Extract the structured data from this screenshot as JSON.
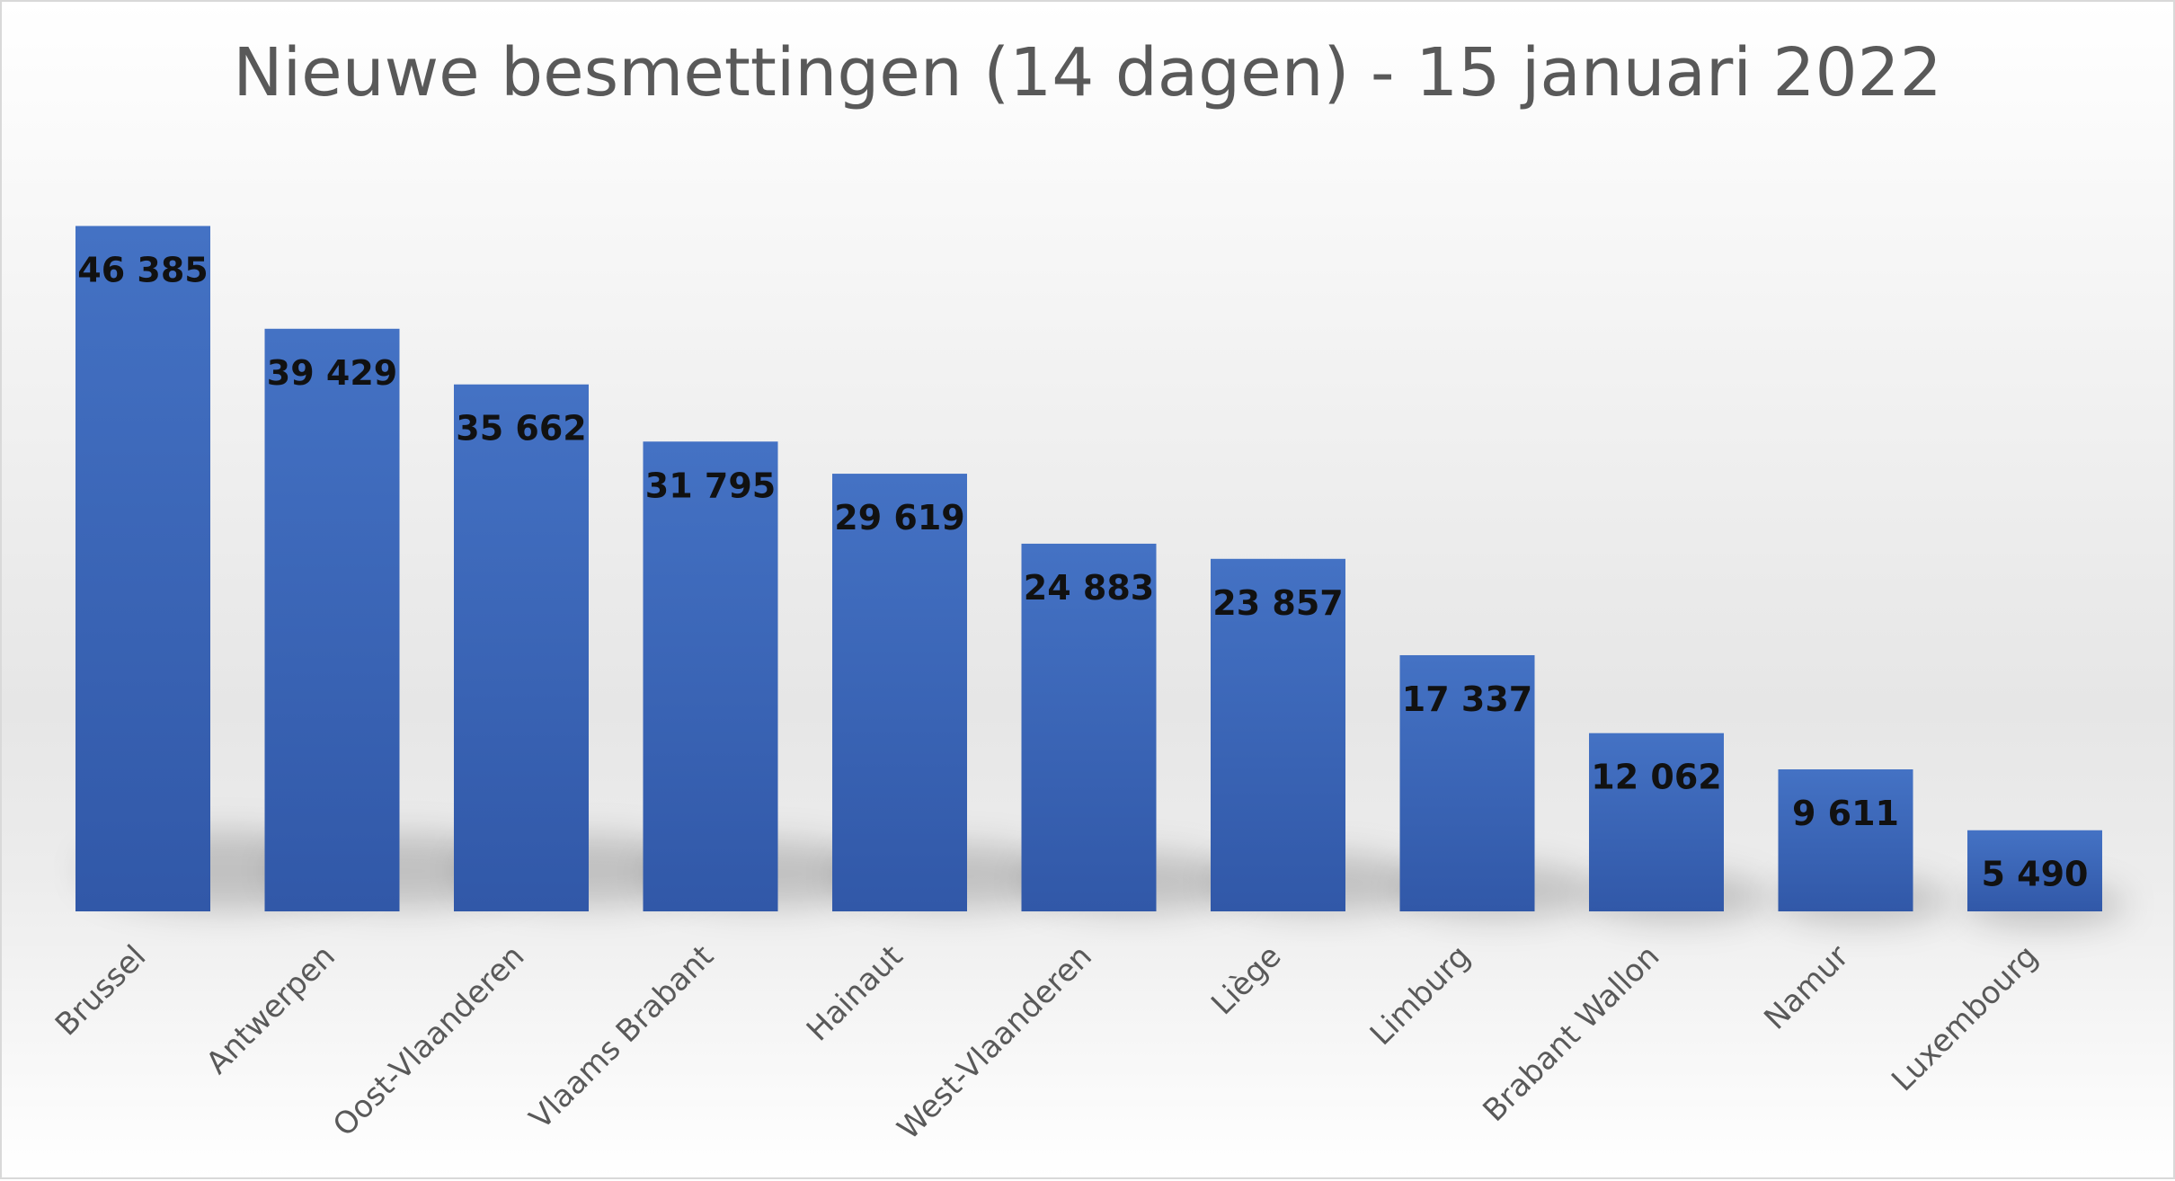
{
  "chart_data": {
    "type": "bar",
    "title": "Nieuwe besmettingen (14 dagen) - 15 januari 2022",
    "categories": [
      "Brussel",
      "Antwerpen",
      "Oost-Vlaanderen",
      "Vlaams Brabant",
      "Hainaut",
      "West-Vlaanderen",
      "Liège",
      "Limburg",
      "Brabant Wallon",
      "Namur",
      "Luxembourg"
    ],
    "values": [
      46385,
      39429,
      35662,
      31795,
      29619,
      24883,
      23857,
      17337,
      12062,
      9611,
      5490
    ],
    "data_labels": [
      "46 385",
      "39 429",
      "35 662",
      "31 795",
      "29 619",
      "24 883",
      "23 857",
      "17 337",
      "12 062",
      "9 611",
      "5 490"
    ],
    "xlabel": "",
    "ylabel": "",
    "ylim": [
      0,
      50000
    ],
    "grid": false,
    "legend": "none",
    "colors": {
      "bar_top": "#4472c4",
      "bar_bottom": "#3158a8",
      "title": "#595959",
      "tick": "#595959",
      "label": "#111111"
    }
  }
}
